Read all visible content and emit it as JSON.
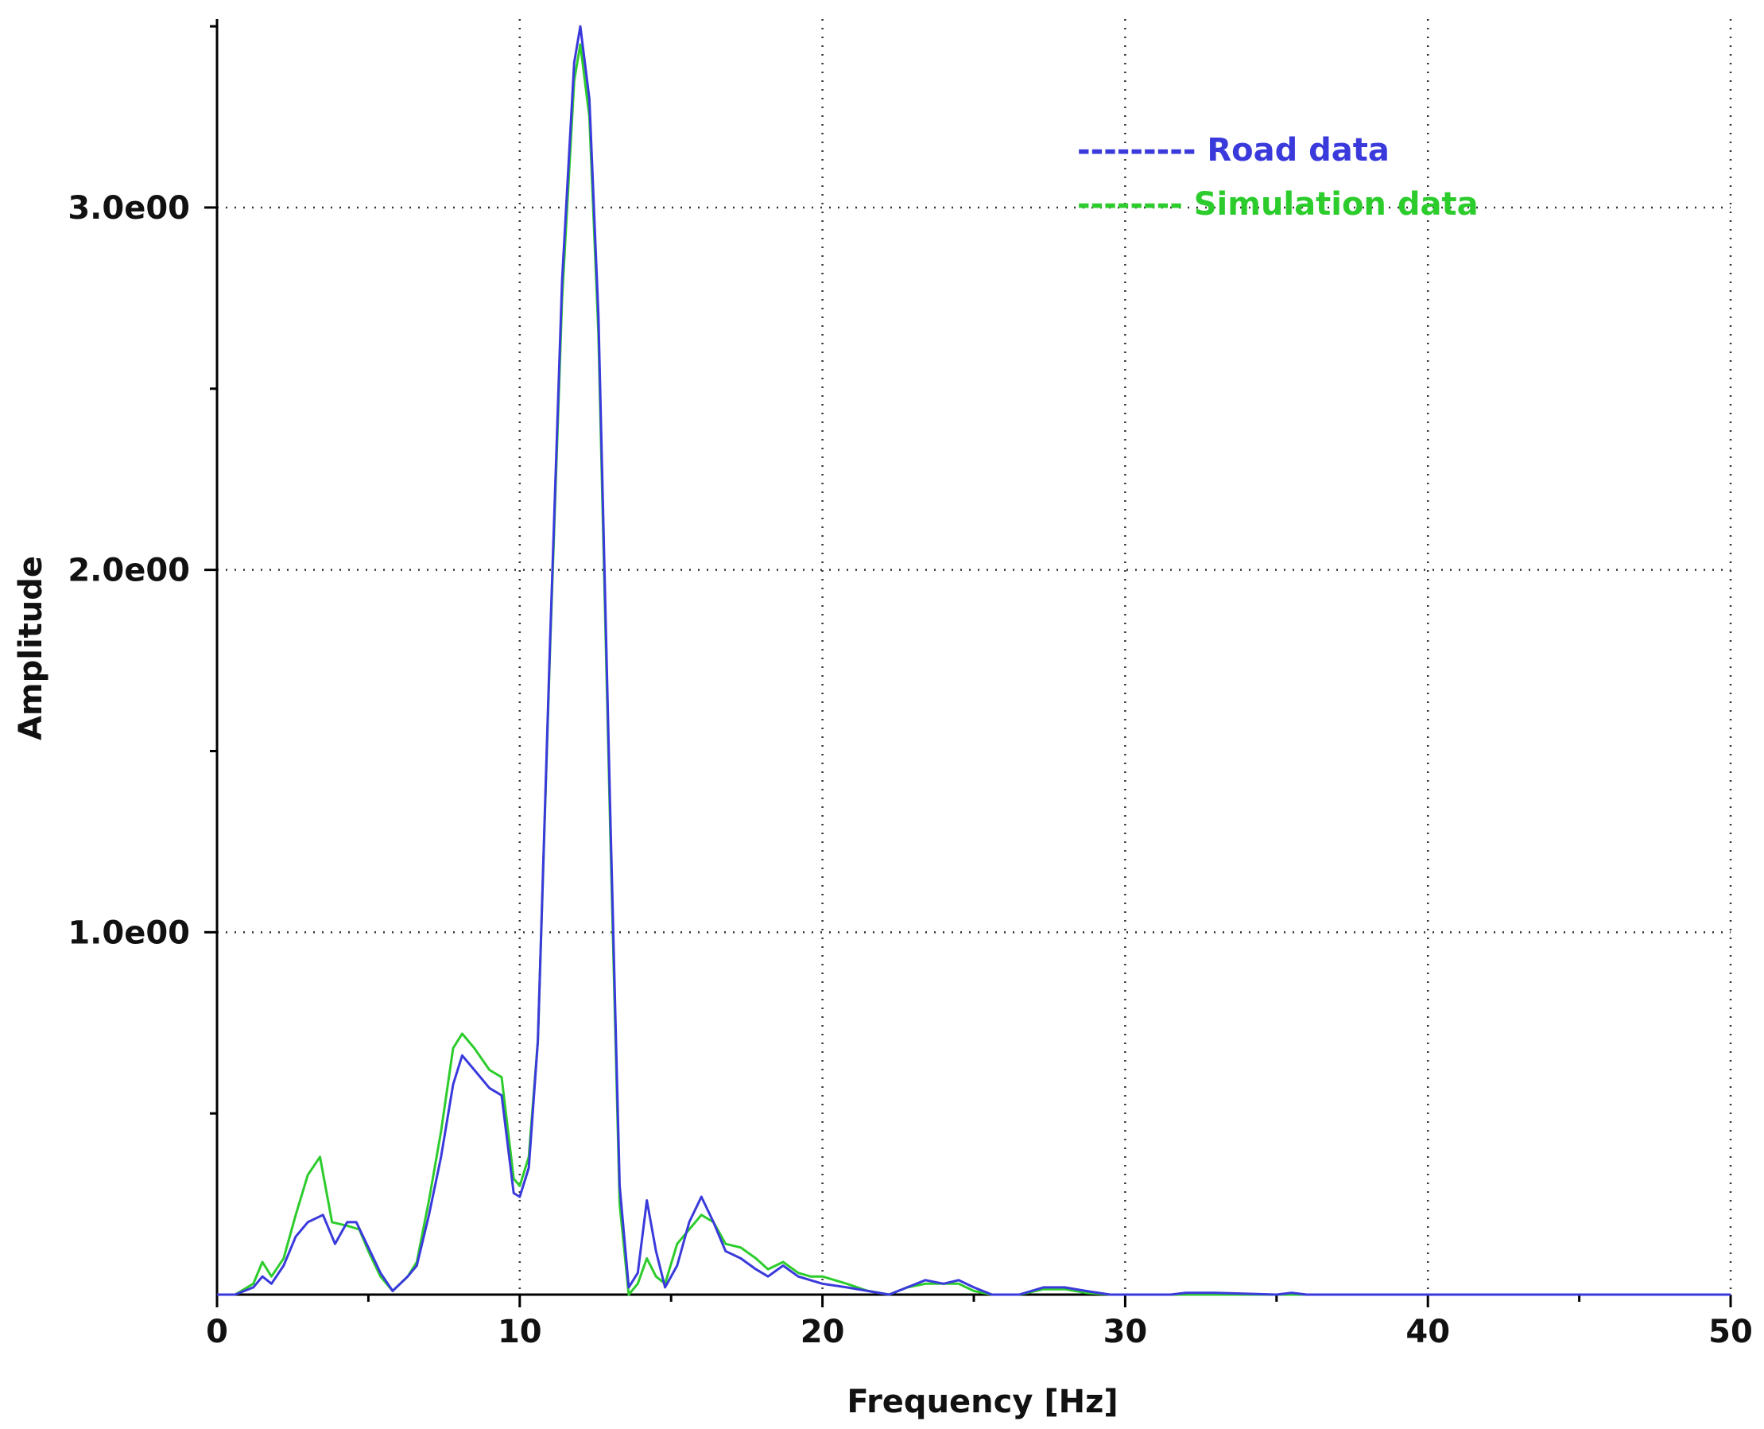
{
  "chart_data": {
    "type": "line",
    "xlabel": "Frequency [Hz]",
    "ylabel": "Amplitude",
    "xlim": [
      0,
      50
    ],
    "ylim": [
      0,
      3.52
    ],
    "grid": true,
    "legend_position": "top-right",
    "x_ticks": [
      {
        "value": 0,
        "label": "0"
      },
      {
        "value": 10,
        "label": "10"
      },
      {
        "value": 20,
        "label": "20"
      },
      {
        "value": 30,
        "label": "30"
      },
      {
        "value": 40,
        "label": "40"
      },
      {
        "value": 50,
        "label": "50"
      }
    ],
    "y_ticks": [
      {
        "value": 1.0,
        "label": "1.0e00"
      },
      {
        "value": 2.0,
        "label": "2.0e00"
      },
      {
        "value": 3.0,
        "label": "3.0e00"
      }
    ],
    "y_minor_ticks": [
      0.5,
      1.5,
      2.5,
      3.5
    ],
    "x_minor_ticks": [
      5,
      15,
      25,
      35,
      45
    ],
    "series": [
      {
        "name": "Road data",
        "legend_label": "--------- Road data",
        "color": "#3a3adc",
        "points": [
          [
            0,
            0
          ],
          [
            0.6,
            0
          ],
          [
            1.2,
            0.02
          ],
          [
            1.5,
            0.05
          ],
          [
            1.8,
            0.03
          ],
          [
            2.2,
            0.08
          ],
          [
            2.6,
            0.16
          ],
          [
            3.0,
            0.2
          ],
          [
            3.5,
            0.22
          ],
          [
            3.9,
            0.14
          ],
          [
            4.3,
            0.2
          ],
          [
            4.6,
            0.2
          ],
          [
            5.0,
            0.13
          ],
          [
            5.4,
            0.06
          ],
          [
            5.8,
            0.01
          ],
          [
            6.3,
            0.05
          ],
          [
            6.6,
            0.08
          ],
          [
            7.0,
            0.22
          ],
          [
            7.4,
            0.38
          ],
          [
            7.8,
            0.58
          ],
          [
            8.1,
            0.66
          ],
          [
            8.5,
            0.62
          ],
          [
            9.0,
            0.57
          ],
          [
            9.4,
            0.55
          ],
          [
            9.8,
            0.28
          ],
          [
            10.0,
            0.27
          ],
          [
            10.3,
            0.35
          ],
          [
            10.6,
            0.7
          ],
          [
            11.0,
            1.8
          ],
          [
            11.4,
            2.8
          ],
          [
            11.8,
            3.4
          ],
          [
            12.0,
            3.5
          ],
          [
            12.3,
            3.3
          ],
          [
            12.6,
            2.7
          ],
          [
            13.0,
            1.3
          ],
          [
            13.3,
            0.3
          ],
          [
            13.6,
            0.02
          ],
          [
            13.9,
            0.06
          ],
          [
            14.2,
            0.26
          ],
          [
            14.5,
            0.12
          ],
          [
            14.8,
            0.02
          ],
          [
            15.2,
            0.08
          ],
          [
            15.6,
            0.2
          ],
          [
            16.0,
            0.27
          ],
          [
            16.4,
            0.2
          ],
          [
            16.8,
            0.12
          ],
          [
            17.3,
            0.1
          ],
          [
            17.8,
            0.07
          ],
          [
            18.2,
            0.05
          ],
          [
            18.7,
            0.08
          ],
          [
            19.2,
            0.05
          ],
          [
            19.6,
            0.04
          ],
          [
            20.0,
            0.03
          ],
          [
            20.8,
            0.02
          ],
          [
            21.5,
            0.01
          ],
          [
            22.2,
            0
          ],
          [
            22.8,
            0.02
          ],
          [
            23.4,
            0.04
          ],
          [
            24.0,
            0.03
          ],
          [
            24.5,
            0.04
          ],
          [
            25.0,
            0.02
          ],
          [
            25.6,
            0
          ],
          [
            26.5,
            0
          ],
          [
            27.3,
            0.02
          ],
          [
            28.0,
            0.02
          ],
          [
            28.7,
            0.01
          ],
          [
            29.5,
            0
          ],
          [
            31.5,
            0
          ],
          [
            32.0,
            0.005
          ],
          [
            33.0,
            0.005
          ],
          [
            35.0,
            0
          ],
          [
            35.5,
            0.005
          ],
          [
            36.0,
            0
          ],
          [
            50,
            0
          ]
        ]
      },
      {
        "name": "Simulation data",
        "legend_label": "-------- Simulation data",
        "color": "#2dcc2d",
        "points": [
          [
            0,
            0
          ],
          [
            0.6,
            0
          ],
          [
            1.2,
            0.03
          ],
          [
            1.5,
            0.09
          ],
          [
            1.8,
            0.05
          ],
          [
            2.2,
            0.1
          ],
          [
            2.6,
            0.22
          ],
          [
            3.0,
            0.33
          ],
          [
            3.4,
            0.38
          ],
          [
            3.8,
            0.2
          ],
          [
            4.3,
            0.19
          ],
          [
            4.7,
            0.18
          ],
          [
            5.0,
            0.12
          ],
          [
            5.4,
            0.05
          ],
          [
            5.8,
            0.01
          ],
          [
            6.3,
            0.05
          ],
          [
            6.6,
            0.09
          ],
          [
            7.0,
            0.26
          ],
          [
            7.4,
            0.45
          ],
          [
            7.8,
            0.68
          ],
          [
            8.1,
            0.72
          ],
          [
            8.5,
            0.68
          ],
          [
            9.0,
            0.62
          ],
          [
            9.4,
            0.6
          ],
          [
            9.8,
            0.32
          ],
          [
            10.0,
            0.3
          ],
          [
            10.3,
            0.38
          ],
          [
            10.6,
            0.7
          ],
          [
            11.0,
            1.78
          ],
          [
            11.4,
            2.75
          ],
          [
            11.8,
            3.35
          ],
          [
            12.0,
            3.45
          ],
          [
            12.3,
            3.25
          ],
          [
            12.6,
            2.65
          ],
          [
            13.0,
            1.25
          ],
          [
            13.3,
            0.25
          ],
          [
            13.6,
            0
          ],
          [
            13.9,
            0.03
          ],
          [
            14.2,
            0.1
          ],
          [
            14.5,
            0.05
          ],
          [
            14.8,
            0.03
          ],
          [
            15.2,
            0.14
          ],
          [
            15.6,
            0.18
          ],
          [
            16.0,
            0.22
          ],
          [
            16.4,
            0.2
          ],
          [
            16.8,
            0.14
          ],
          [
            17.3,
            0.13
          ],
          [
            17.8,
            0.1
          ],
          [
            18.2,
            0.07
          ],
          [
            18.7,
            0.09
          ],
          [
            19.2,
            0.06
          ],
          [
            19.6,
            0.05
          ],
          [
            20.0,
            0.05
          ],
          [
            20.8,
            0.03
          ],
          [
            21.5,
            0.01
          ],
          [
            22.2,
            0
          ],
          [
            22.8,
            0.02
          ],
          [
            23.4,
            0.03
          ],
          [
            24.0,
            0.03
          ],
          [
            24.5,
            0.03
          ],
          [
            25.0,
            0.01
          ],
          [
            25.6,
            0
          ],
          [
            26.5,
            0
          ],
          [
            27.3,
            0.015
          ],
          [
            28.0,
            0.015
          ],
          [
            28.7,
            0.005
          ],
          [
            29.5,
            0
          ],
          [
            50,
            0
          ]
        ]
      }
    ]
  }
}
